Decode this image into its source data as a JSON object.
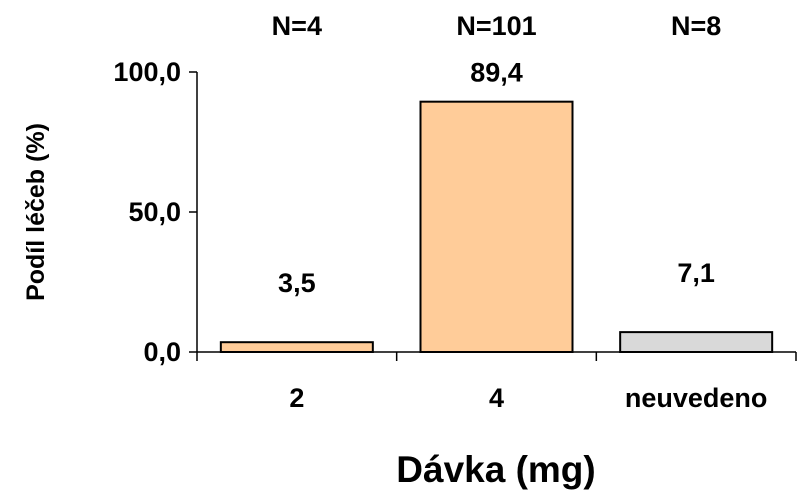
{
  "chart_data": {
    "type": "bar",
    "categories": [
      "2",
      "4",
      "neuvedeno"
    ],
    "values": [
      3.5,
      89.4,
      7.1
    ],
    "value_labels": [
      "3,5",
      "89,4",
      "7,1"
    ],
    "n_labels": [
      "N=4",
      "N=101",
      "N=8"
    ],
    "bar_colors": [
      "#FFCC99",
      "#FFCC99",
      "#D9D9D9"
    ],
    "bar_stroke": "#000000",
    "xlabel": "Dávka (mg)",
    "ylabel": "Podíl léčeb (%)",
    "ylim": [
      0,
      100
    ],
    "yticks": [
      0,
      50,
      100
    ],
    "ytick_labels": [
      "0,0",
      "50,0",
      "100,0"
    ],
    "grid": false,
    "legend": "none"
  }
}
